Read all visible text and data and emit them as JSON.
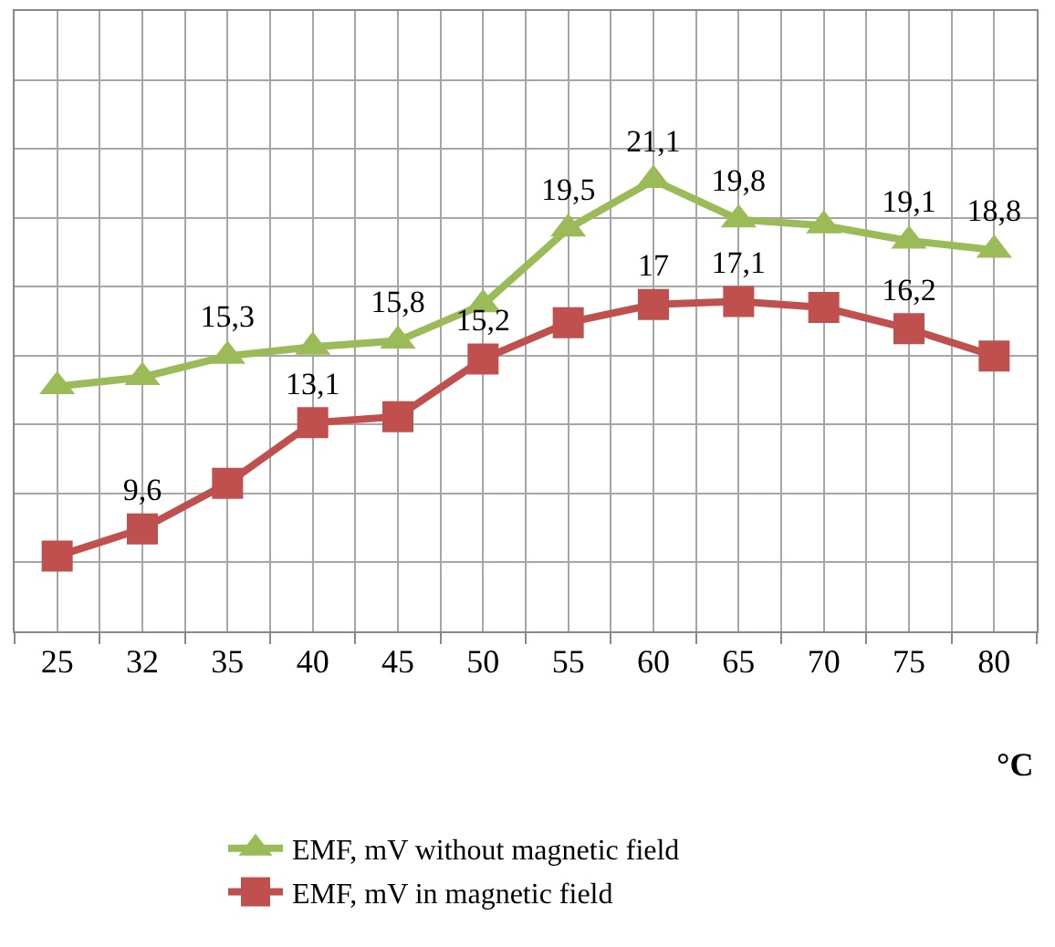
{
  "chart_data": {
    "type": "line",
    "xlabel": "°C",
    "categories": [
      "25",
      "32",
      "35",
      "40",
      "45",
      "50",
      "55",
      "60",
      "65",
      "70",
      "75",
      "80"
    ],
    "series": [
      {
        "name": "EMF, mV without magnetic field",
        "color": "#9bbb59",
        "marker": "triangle",
        "values": [
          14.3,
          14.6,
          15.3,
          15.6,
          15.8,
          17.0,
          19.5,
          21.1,
          19.8,
          19.6,
          19.1,
          18.8
        ],
        "value_labels": [
          null,
          null,
          "15,3",
          null,
          "15,8",
          null,
          "19,5",
          "21,1",
          "19,8",
          null,
          "19,1",
          "18,8"
        ]
      },
      {
        "name": "EMF, mV in magnetic field",
        "color": "#c0504d",
        "marker": "square",
        "values": [
          8.7,
          9.6,
          11.1,
          13.1,
          13.3,
          15.2,
          16.4,
          17,
          17.1,
          16.9,
          16.2,
          15.3
        ],
        "value_labels": [
          null,
          "9,6",
          null,
          "13,1",
          null,
          "15,2",
          null,
          "17",
          "17,1",
          null,
          "16,2",
          null
        ]
      }
    ],
    "grid": true,
    "legend": "bottom",
    "line_style": "solid"
  }
}
